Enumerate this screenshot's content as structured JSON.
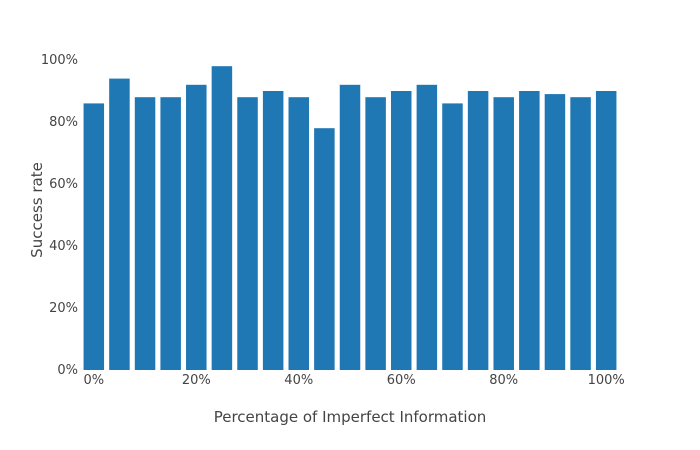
{
  "chart_data": {
    "type": "bar",
    "title": "",
    "xlabel": "Percentage of Imperfect Information",
    "ylabel": "Success rate",
    "x": [
      0,
      5,
      10,
      15,
      20,
      25,
      30,
      35,
      40,
      45,
      50,
      55,
      60,
      65,
      70,
      75,
      80,
      85,
      90,
      95,
      100
    ],
    "values": [
      86,
      94,
      88,
      88,
      92,
      98,
      88,
      90,
      88,
      78,
      92,
      88,
      90,
      92,
      86,
      90,
      88,
      90,
      89,
      88,
      90
    ],
    "ylim": [
      0,
      100
    ],
    "xlim": [
      -2.5,
      102.5
    ],
    "xticks": [
      {
        "value": 0,
        "label": "0%"
      },
      {
        "value": 20,
        "label": "20%"
      },
      {
        "value": 40,
        "label": "40%"
      },
      {
        "value": 60,
        "label": "60%"
      },
      {
        "value": 80,
        "label": "80%"
      },
      {
        "value": 100,
        "label": "100%"
      }
    ],
    "yticks": [
      {
        "value": 0,
        "label": "0%"
      },
      {
        "value": 20,
        "label": "20%"
      },
      {
        "value": 40,
        "label": "40%"
      },
      {
        "value": 60,
        "label": "60%"
      },
      {
        "value": 80,
        "label": "80%"
      },
      {
        "value": 100,
        "label": "100%"
      }
    ],
    "grid": false,
    "legend": "none",
    "bar_color": "#1f77b4"
  }
}
